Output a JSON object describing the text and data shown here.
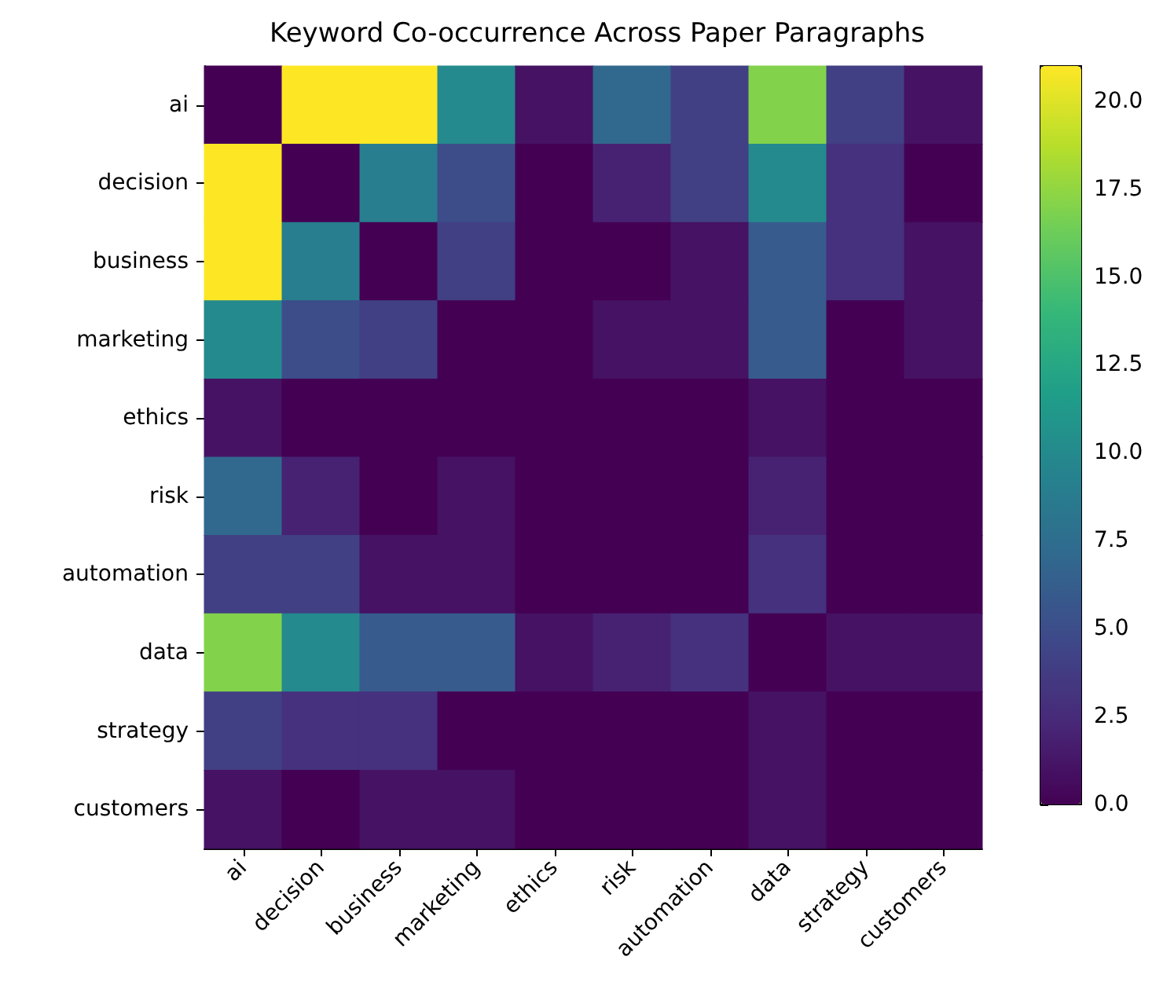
{
  "chart_data": {
    "type": "heatmap",
    "title": "Keyword Co-occurrence Across Paper Paragraphs",
    "categories": [
      "ai",
      "decision",
      "business",
      "marketing",
      "ethics",
      "risk",
      "automation",
      "data",
      "strategy",
      "customers"
    ],
    "y_categories": [
      "ai",
      "decision",
      "business",
      "marketing",
      "ethics",
      "risk",
      "automation",
      "data",
      "strategy",
      "customers"
    ],
    "cells": [
      [
        0,
        21,
        21,
        10,
        1,
        7,
        4,
        17,
        4,
        1
      ],
      [
        21,
        0,
        9,
        5,
        0,
        2,
        4,
        10,
        3,
        0
      ],
      [
        21,
        9,
        0,
        4,
        0,
        0,
        1,
        6,
        3,
        1
      ],
      [
        10,
        5,
        4,
        0,
        0,
        1,
        1,
        6,
        0,
        1
      ],
      [
        1,
        0,
        0,
        0,
        0,
        0,
        0,
        1,
        0,
        0
      ],
      [
        7,
        2,
        0,
        1,
        0,
        0,
        0,
        2,
        0,
        0
      ],
      [
        4,
        4,
        1,
        1,
        0,
        0,
        0,
        3,
        0,
        0
      ],
      [
        17,
        10,
        6,
        6,
        1,
        2,
        3,
        0,
        1,
        1
      ],
      [
        4,
        3,
        3,
        0,
        0,
        0,
        0,
        1,
        0,
        0
      ],
      [
        1,
        0,
        1,
        1,
        0,
        0,
        0,
        1,
        0,
        0
      ]
    ],
    "clim": [
      0,
      21
    ],
    "cticks": [
      {
        "value": 0,
        "label": "0.0"
      },
      {
        "value": 2.5,
        "label": "2.5"
      },
      {
        "value": 5,
        "label": "5.0"
      },
      {
        "value": 7.5,
        "label": "7.5"
      },
      {
        "value": 10,
        "label": "10.0"
      },
      {
        "value": 12.5,
        "label": "12.5"
      },
      {
        "value": 15,
        "label": "15.0"
      },
      {
        "value": 17.5,
        "label": "17.5"
      },
      {
        "value": 20,
        "label": "20.0"
      }
    ]
  }
}
